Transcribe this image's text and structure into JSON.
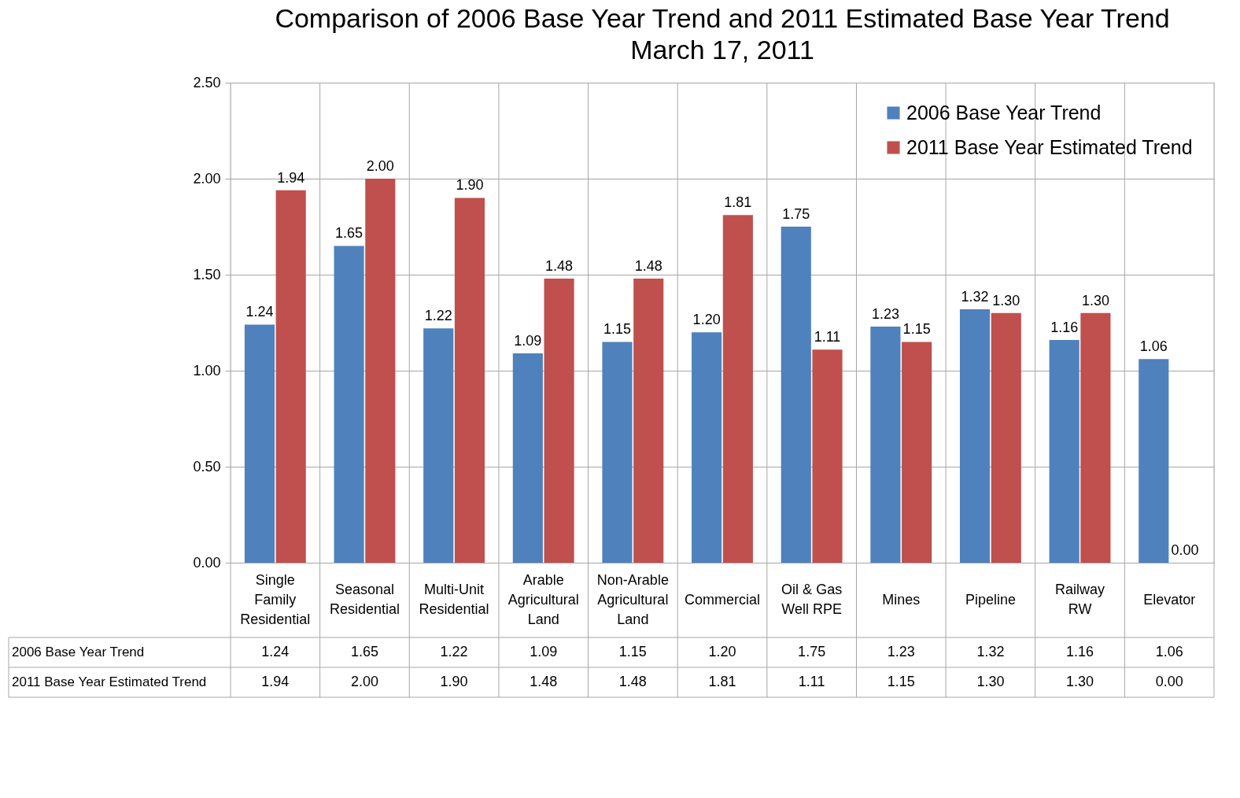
{
  "chart_data": {
    "type": "bar",
    "title": "Comparison of 2006 Base Year Trend and 2011 Estimated Base Year Trend",
    "subtitle": "March 17, 2011",
    "categories": [
      "Single Family Residential",
      "Seasonal Residential",
      "Multi-Unit Residential",
      "Arable Agricultural Land",
      "Non-Arable Agricultural Land",
      "Commercial",
      "Oil & Gas Well RPE",
      "Mines",
      "Pipeline",
      "Railway RW",
      "Elevator"
    ],
    "series": [
      {
        "name": "2006 Base Year Trend",
        "color": "#4f81bd",
        "values": [
          1.24,
          1.65,
          1.22,
          1.09,
          1.15,
          1.2,
          1.75,
          1.23,
          1.32,
          1.16,
          1.06
        ],
        "value_labels": [
          "1.24",
          "1.65",
          "1.22",
          "1.09",
          "1.15",
          "1.20",
          "1.75",
          "1.23",
          "1.32",
          "1.16",
          "1.06"
        ]
      },
      {
        "name": "2011 Base Year Estimated Trend",
        "color": "#c0504d",
        "values": [
          1.94,
          2.0,
          1.9,
          1.48,
          1.48,
          1.81,
          1.11,
          1.15,
          1.3,
          1.3,
          0.0
        ],
        "value_labels": [
          "1.94",
          "2.00",
          "1.90",
          "1.48",
          "1.48",
          "1.81",
          "1.11",
          "1.15",
          "1.30",
          "1.30",
          "0.00"
        ]
      }
    ],
    "ylim": [
      0,
      2.5
    ],
    "yticks": [
      {
        "value": 0,
        "label": "0.00"
      },
      {
        "value": 0.5,
        "label": "0.50"
      },
      {
        "value": 1,
        "label": "1.00"
      },
      {
        "value": 1.5,
        "label": "1.50"
      },
      {
        "value": 2,
        "label": "2.00"
      },
      {
        "value": 2.5,
        "label": "2.50"
      }
    ],
    "grid": true,
    "legend": "top right"
  }
}
